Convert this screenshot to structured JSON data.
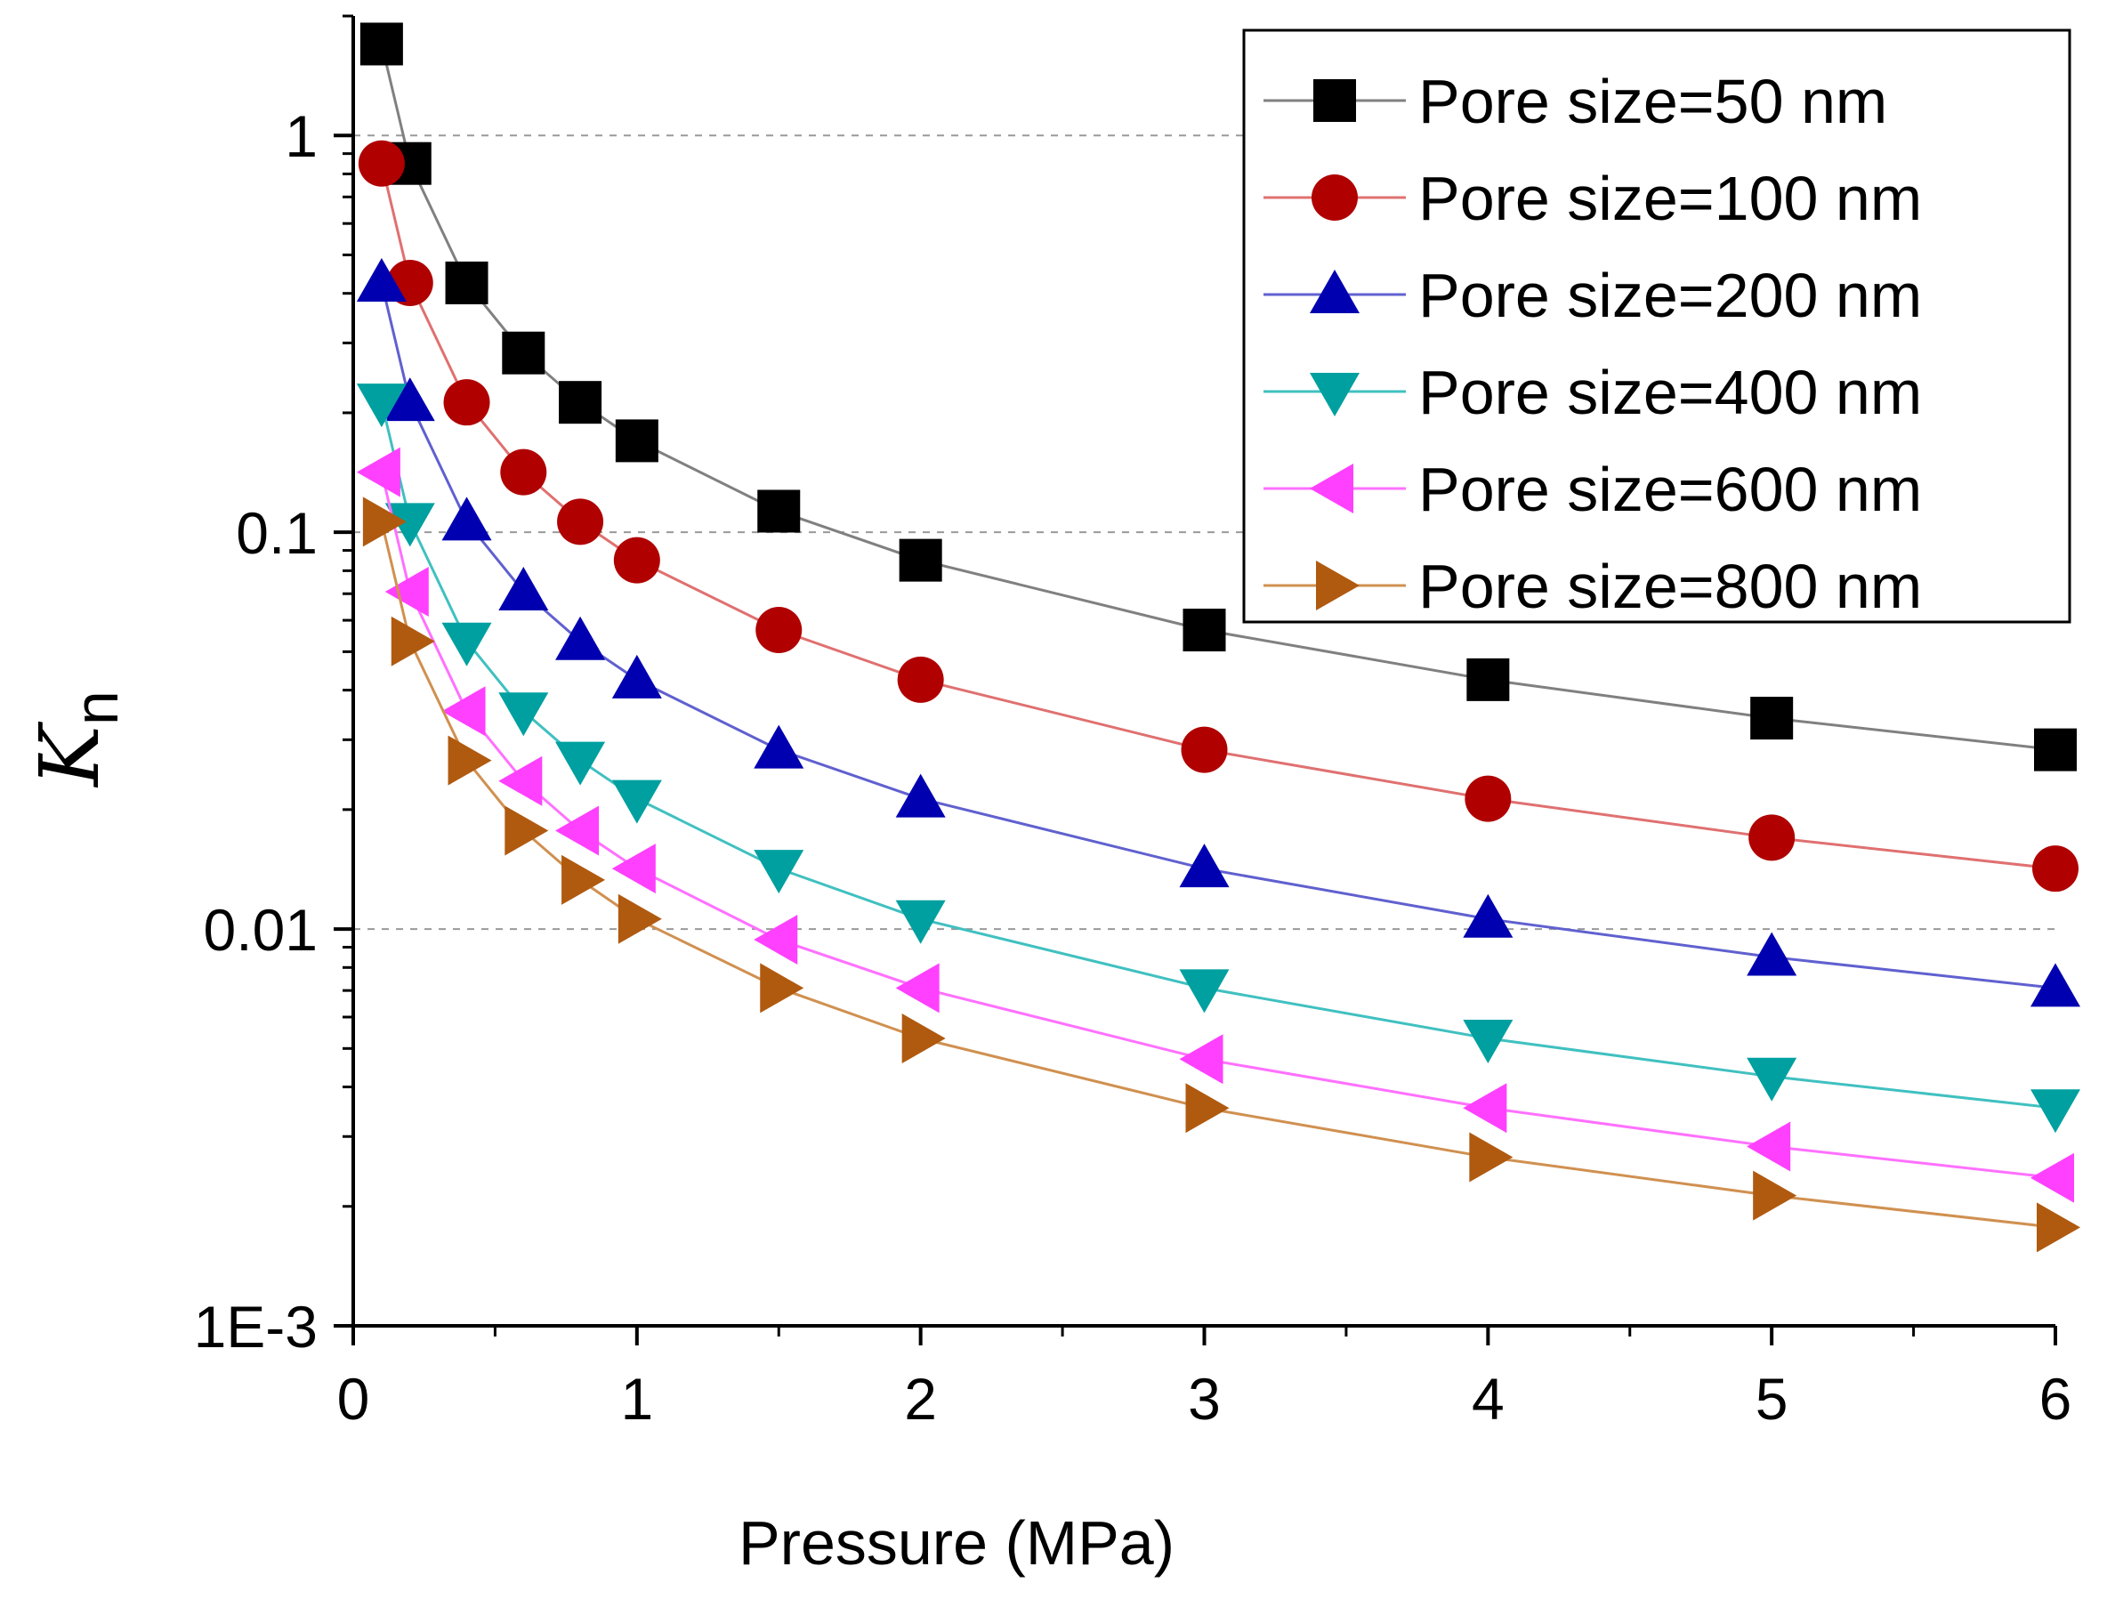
{
  "chart_data": {
    "type": "line",
    "title": "",
    "xlabel": "Pressure (MPa)",
    "ylabel_main": "K",
    "ylabel_sub": "n",
    "xlim": [
      0,
      6
    ],
    "ylim": [
      0.001,
      2
    ],
    "yscale": "log",
    "x_ticks": [
      0,
      1,
      2,
      3,
      4,
      5,
      6
    ],
    "x_tick_labels": [
      "0",
      "1",
      "2",
      "3",
      "4",
      "5",
      "6"
    ],
    "y_ticks": [
      0.001,
      0.01,
      0.1,
      1
    ],
    "y_tick_labels": [
      "1E-3",
      "0.01",
      "0.1",
      "1"
    ],
    "gridlines_y": [
      0.01,
      0.1,
      1
    ],
    "legend_position": "top-right",
    "x": [
      0.1,
      0.2,
      0.4,
      0.6,
      0.8,
      1.0,
      1.5,
      2,
      3,
      4,
      5,
      6
    ],
    "series": [
      {
        "name": "Pore size=50 nm",
        "marker": "square",
        "color": "#000000",
        "line_color": "#808080",
        "values": [
          1.7,
          0.85,
          0.425,
          0.283,
          0.2125,
          0.17,
          0.113,
          0.085,
          0.0567,
          0.0425,
          0.034,
          0.0283
        ]
      },
      {
        "name": "Pore size=100 nm",
        "marker": "circle",
        "color": "#b00000",
        "line_color": "#e07070",
        "values": [
          0.85,
          0.425,
          0.2125,
          0.1417,
          0.1063,
          0.085,
          0.0567,
          0.0425,
          0.0283,
          0.0213,
          0.017,
          0.0142
        ]
      },
      {
        "name": "Pore size=200 nm",
        "marker": "triangle-up",
        "color": "#0000b0",
        "line_color": "#6060d0",
        "values": [
          0.425,
          0.2125,
          0.1063,
          0.0708,
          0.0531,
          0.0425,
          0.0283,
          0.0213,
          0.0142,
          0.0106,
          0.0085,
          0.0071
        ]
      },
      {
        "name": "Pore size=400 nm",
        "marker": "triangle-down",
        "color": "#00a0a0",
        "line_color": "#40c0c0",
        "values": [
          0.2125,
          0.1063,
          0.0531,
          0.0354,
          0.0266,
          0.0213,
          0.0142,
          0.0106,
          0.0071,
          0.0053,
          0.00425,
          0.00354
        ]
      },
      {
        "name": "Pore size=600 nm",
        "marker": "triangle-left",
        "color": "#ff40ff",
        "line_color": "#ff70ff",
        "values": [
          0.1417,
          0.0708,
          0.0354,
          0.0236,
          0.0177,
          0.0142,
          0.0094,
          0.0071,
          0.0047,
          0.00354,
          0.00283,
          0.00236
        ]
      },
      {
        "name": "Pore size=800 nm",
        "marker": "triangle-right",
        "color": "#b05a10",
        "line_color": "#d09050",
        "values": [
          0.1063,
          0.0531,
          0.0266,
          0.0177,
          0.0133,
          0.0106,
          0.0071,
          0.0053,
          0.00354,
          0.00266,
          0.00213,
          0.00177
        ]
      }
    ]
  }
}
